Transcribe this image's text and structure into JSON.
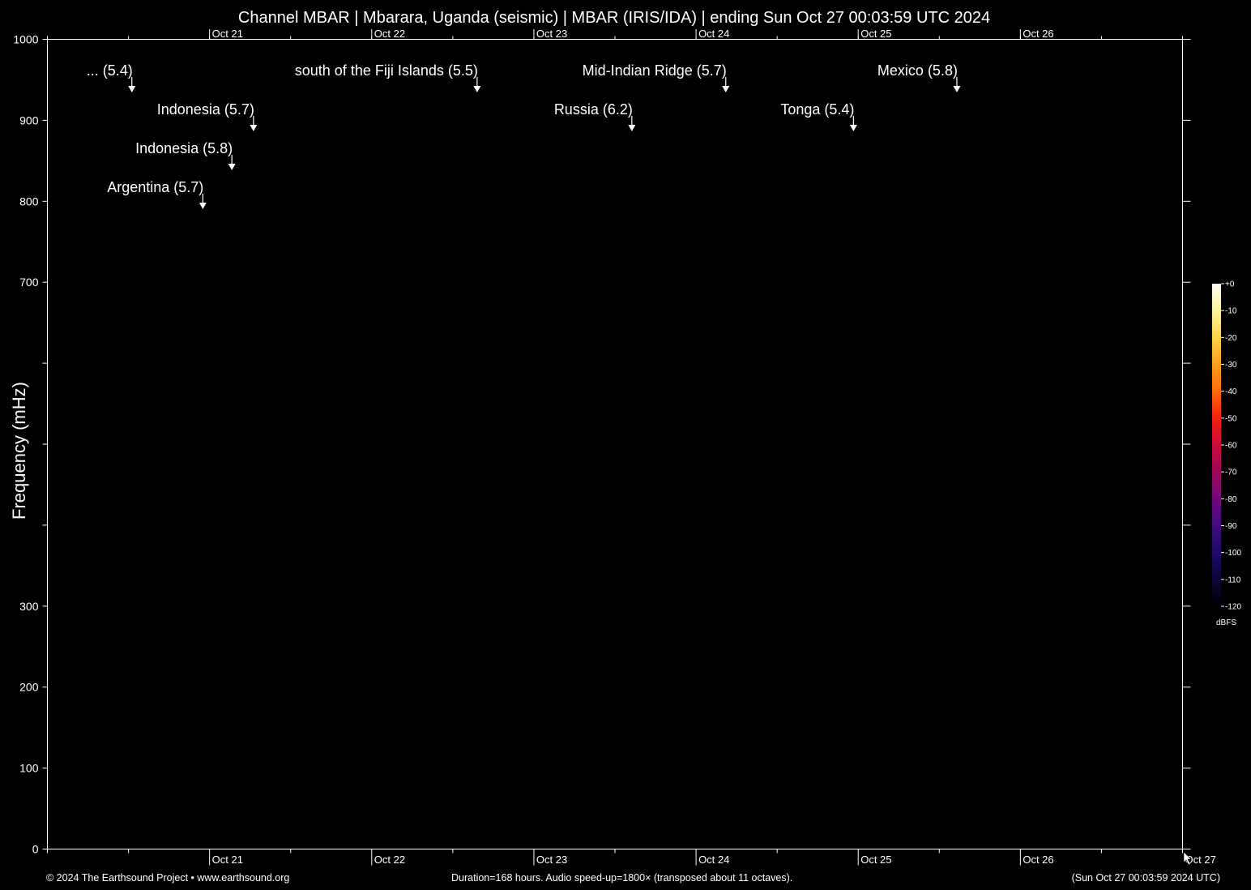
{
  "title": "Channel MBAR | Mbarara, Uganda (seismic) | MBAR (IRIS/IDA) | ending Sun Oct 27 00:03:59 UTC 2024",
  "footer": {
    "left": "© 2024 The Earthsound Project • www.earthsound.org",
    "center": "Duration=168 hours. Audio speed-up=1800× (transposed about 11 octaves).",
    "right": "(Sun Oct 27 00:03:59 2024 UTC)"
  },
  "chart_data": {
    "type": "heatmap",
    "title": "Channel MBAR | Mbarara, Uganda (seismic) | MBAR (IRIS/IDA) | ending Sun Oct 27 00:03:59 UTC 2024",
    "ylabel": "Frequency (mHz)",
    "xlabel": "",
    "ylim": [
      0,
      1000
    ],
    "y_ticks": [
      0,
      100,
      200,
      300,
      400,
      500,
      600,
      700,
      800,
      900,
      1000
    ],
    "y_tick_labels": [
      "0",
      "100",
      "200",
      "300",
      "",
      "",
      "",
      "700",
      "800",
      "900",
      "1000"
    ],
    "x_range_hours": [
      0,
      168
    ],
    "x_ticks_top": [
      {
        "hours": 24,
        "label": "Oct 21"
      },
      {
        "hours": 48,
        "label": "Oct 22"
      },
      {
        "hours": 72,
        "label": "Oct 23"
      },
      {
        "hours": 96,
        "label": "Oct 24"
      },
      {
        "hours": 120,
        "label": "Oct 25"
      },
      {
        "hours": 144,
        "label": "Oct 26"
      }
    ],
    "x_ticks_bottom": [
      {
        "hours": 24,
        "label": "Oct 21"
      },
      {
        "hours": 48,
        "label": "Oct 22"
      },
      {
        "hours": 72,
        "label": "Oct 23"
      },
      {
        "hours": 96,
        "label": "Oct 24"
      },
      {
        "hours": 120,
        "label": "Oct 25"
      },
      {
        "hours": 144,
        "label": "Oct 26"
      },
      {
        "hours": 168,
        "label": "Oct 27"
      }
    ],
    "events": [
      {
        "label": "... (5.4)",
        "hours": 12.5,
        "row": 0
      },
      {
        "label": "Indonesia (5.7)",
        "hours": 30.5,
        "row": 1
      },
      {
        "label": "Indonesia (5.8)",
        "hours": 27.3,
        "row": 2
      },
      {
        "label": "Argentina (5.7)",
        "hours": 23.0,
        "row": 3
      },
      {
        "label": "south of the Fiji Islands (5.5)",
        "hours": 63.6,
        "row": 0
      },
      {
        "label": "Russia (6.2)",
        "hours": 86.5,
        "row": 1
      },
      {
        "label": "Mid-Indian Ridge (5.7)",
        "hours": 100.4,
        "row": 0
      },
      {
        "label": "Tonga (5.4)",
        "hours": 119.3,
        "row": 1
      },
      {
        "label": "Mexico (5.8)",
        "hours": 134.6,
        "row": 0
      }
    ],
    "colorbar": {
      "label": "dBFS",
      "ticks": [
        "+0",
        "-10",
        "-20",
        "-30",
        "-40",
        "-50",
        "-60",
        "-70",
        "-80",
        "-90",
        "-100",
        "-110",
        "-120"
      ],
      "colors": [
        "#fffff0",
        "#fff3a0",
        "#ffd24a",
        "#ffa01e",
        "#ff6a0a",
        "#f2200e",
        "#cc0a3a",
        "#a0065a",
        "#70087a",
        "#420a82",
        "#1e0a66",
        "#0a0636",
        "#000005"
      ]
    },
    "grid": false
  }
}
